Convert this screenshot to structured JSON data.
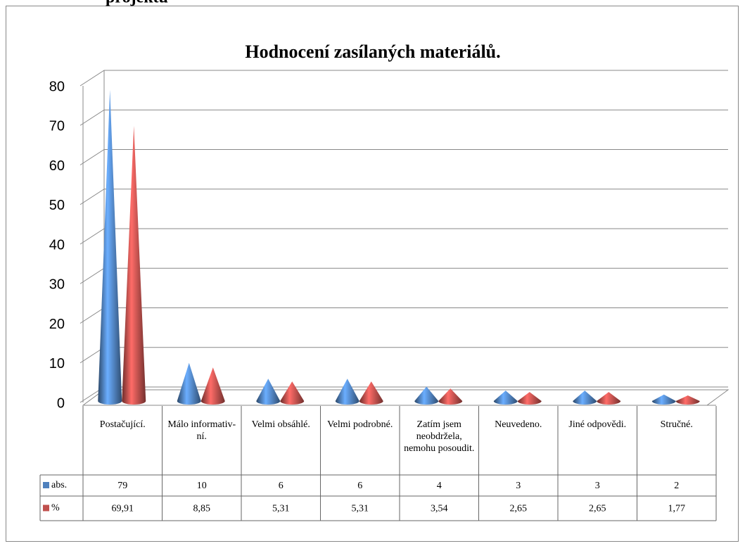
{
  "heading": "projektu",
  "chart_data": {
    "type": "cone",
    "title": "Hodnocení zasílaných materiálů.",
    "categories": [
      "Postačující.",
      "Málo informativ-ní.",
      "Velmi obsáhlé.",
      "Velmi podrobné.",
      "Zatím jsem neobdržela, nemohu posoudit.",
      "Neuvedeno.",
      "Jiné odpovědi.",
      "Stručné."
    ],
    "series": [
      {
        "name": "abs.",
        "color": "#4f81bd",
        "values": [
          79,
          10,
          6,
          6,
          4,
          3,
          3,
          2
        ]
      },
      {
        "name": "%",
        "color": "#c0504d",
        "values": [
          69.91,
          8.85,
          5.31,
          5.31,
          3.54,
          2.65,
          2.65,
          1.77
        ],
        "value_labels": [
          "69,91",
          "8,85",
          "5,31",
          "5,31",
          "3,54",
          "2,65",
          "2,65",
          "1,77"
        ]
      }
    ],
    "ylim": [
      0,
      80
    ],
    "yticks": [
      0,
      10,
      20,
      30,
      40,
      50,
      60,
      70,
      80
    ],
    "grid": true,
    "data_table": true
  }
}
